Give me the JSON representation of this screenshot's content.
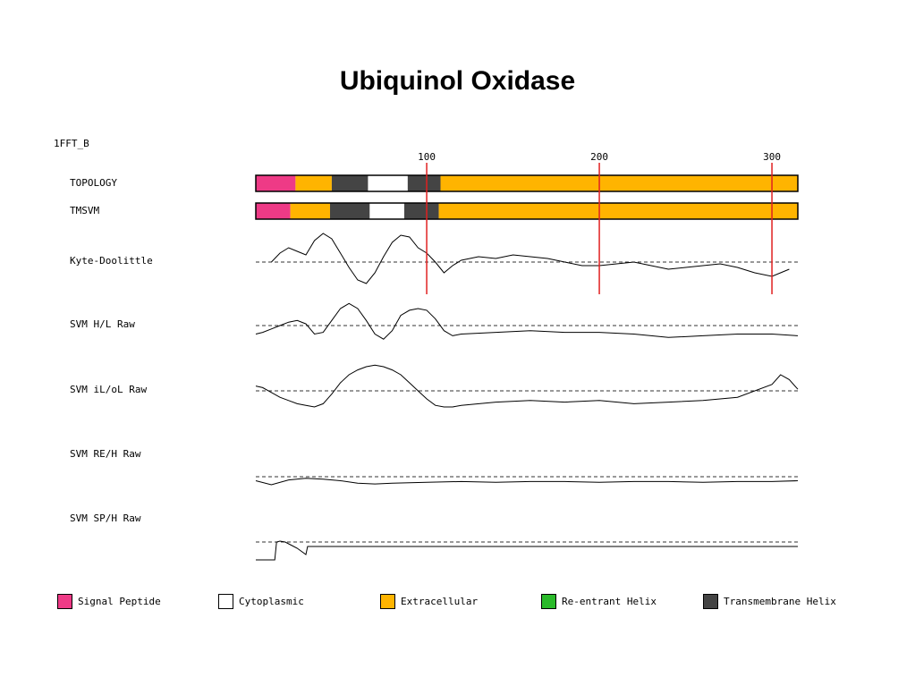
{
  "title": "Ubiquinol Oxidase",
  "sequence_id": "1FFT_B",
  "colors": {
    "signal_peptide": "#ee3a86",
    "cytoplasmic": "#ffffff",
    "extracellular": "#ffb400",
    "reentrant_helix": "#2aba2a",
    "transmembrane_helix": "#444444",
    "marker_line": "#e02020",
    "trace": "#000000"
  },
  "chart_data": {
    "type": "line",
    "title": "Ubiquinol Oxidase",
    "x_range": [
      1,
      315
    ],
    "x_ticks": [
      100,
      200,
      300
    ],
    "marker_positions": [
      100,
      200,
      300
    ],
    "topology_tracks": [
      {
        "name": "TOPOLOGY",
        "segments": [
          {
            "start": 1,
            "end": 24,
            "type": "signal_peptide"
          },
          {
            "start": 24,
            "end": 45,
            "type": "extracellular"
          },
          {
            "start": 45,
            "end": 66,
            "type": "transmembrane_helix"
          },
          {
            "start": 66,
            "end": 89,
            "type": "cytoplasmic"
          },
          {
            "start": 89,
            "end": 108,
            "type": "transmembrane_helix"
          },
          {
            "start": 108,
            "end": 315,
            "type": "extracellular"
          }
        ]
      },
      {
        "name": "TMSVM",
        "segments": [
          {
            "start": 1,
            "end": 21,
            "type": "signal_peptide"
          },
          {
            "start": 21,
            "end": 44,
            "type": "extracellular"
          },
          {
            "start": 44,
            "end": 67,
            "type": "transmembrane_helix"
          },
          {
            "start": 67,
            "end": 87,
            "type": "cytoplasmic"
          },
          {
            "start": 87,
            "end": 107,
            "type": "transmembrane_helix"
          },
          {
            "start": 107,
            "end": 315,
            "type": "extracellular"
          }
        ]
      }
    ],
    "profiles": [
      {
        "name": "Kyte-Doolittle",
        "x": [
          10,
          15,
          20,
          25,
          30,
          35,
          40,
          45,
          50,
          55,
          60,
          65,
          70,
          75,
          80,
          85,
          90,
          95,
          100,
          105,
          110,
          115,
          120,
          130,
          140,
          150,
          160,
          170,
          180,
          190,
          200,
          210,
          220,
          230,
          240,
          250,
          260,
          270,
          280,
          290,
          300,
          305,
          310
        ],
        "y": [
          0.0,
          0.5,
          0.8,
          0.6,
          0.4,
          1.2,
          1.6,
          1.3,
          0.5,
          -0.3,
          -1.0,
          -1.2,
          -0.6,
          0.3,
          1.1,
          1.5,
          1.4,
          0.8,
          0.5,
          0.0,
          -0.6,
          -0.2,
          0.1,
          0.3,
          0.2,
          0.4,
          0.3,
          0.2,
          0.0,
          -0.2,
          -0.2,
          -0.1,
          0.0,
          -0.2,
          -0.4,
          -0.3,
          -0.2,
          -0.1,
          -0.3,
          -0.6,
          -0.8,
          -0.6,
          -0.4
        ],
        "baseline": 0
      },
      {
        "name": "SVM H/L Raw",
        "x": [
          1,
          5,
          10,
          15,
          20,
          25,
          30,
          35,
          40,
          45,
          50,
          55,
          60,
          65,
          70,
          75,
          80,
          85,
          90,
          95,
          100,
          105,
          110,
          115,
          120,
          140,
          160,
          180,
          200,
          220,
          240,
          260,
          280,
          300,
          315
        ],
        "y": [
          -0.5,
          -0.4,
          -0.2,
          0.0,
          0.2,
          0.3,
          0.1,
          -0.5,
          -0.4,
          0.3,
          1.0,
          1.3,
          1.0,
          0.3,
          -0.5,
          -0.8,
          -0.3,
          0.6,
          0.9,
          1.0,
          0.9,
          0.4,
          -0.3,
          -0.6,
          -0.5,
          -0.4,
          -0.3,
          -0.4,
          -0.4,
          -0.5,
          -0.7,
          -0.6,
          -0.5,
          -0.5,
          -0.6
        ],
        "baseline": 0
      },
      {
        "name": "SVM iL/oL Raw",
        "x": [
          1,
          5,
          10,
          15,
          20,
          25,
          30,
          35,
          40,
          45,
          50,
          55,
          60,
          65,
          70,
          75,
          80,
          85,
          90,
          95,
          100,
          105,
          110,
          115,
          120,
          140,
          160,
          180,
          200,
          220,
          240,
          260,
          280,
          300,
          305,
          310,
          315
        ],
        "y": [
          0.3,
          0.2,
          -0.1,
          -0.4,
          -0.6,
          -0.8,
          -0.9,
          -1.0,
          -0.8,
          -0.2,
          0.5,
          1.0,
          1.3,
          1.5,
          1.6,
          1.5,
          1.3,
          1.0,
          0.5,
          0.0,
          -0.5,
          -0.9,
          -1.0,
          -1.0,
          -0.9,
          -0.7,
          -0.6,
          -0.7,
          -0.6,
          -0.8,
          -0.7,
          -0.6,
          -0.4,
          0.4,
          1.0,
          0.7,
          0.1
        ],
        "baseline": 0
      },
      {
        "name": "SVM RE/H Raw",
        "x": [
          1,
          10,
          20,
          30,
          40,
          50,
          60,
          70,
          80,
          100,
          120,
          140,
          160,
          180,
          200,
          220,
          240,
          260,
          280,
          300,
          315
        ],
        "y": [
          -0.5,
          -1.0,
          -0.4,
          -0.2,
          -0.3,
          -0.5,
          -0.8,
          -0.9,
          -0.8,
          -0.7,
          -0.6,
          -0.7,
          -0.6,
          -0.6,
          -0.7,
          -0.6,
          -0.6,
          -0.7,
          -0.6,
          -0.6,
          -0.5
        ],
        "baseline": 0
      },
      {
        "name": "SVM SP/H Raw",
        "x": [
          1,
          12,
          13,
          15,
          18,
          22,
          25,
          30,
          31,
          315
        ],
        "y": [
          -2.0,
          -2.0,
          0.0,
          0.1,
          0.0,
          -0.4,
          -0.7,
          -1.4,
          -0.5,
          -0.5
        ],
        "baseline": 0
      }
    ],
    "legend": [
      {
        "label": "Signal Peptide",
        "color_key": "signal_peptide"
      },
      {
        "label": "Cytoplasmic",
        "color_key": "cytoplasmic"
      },
      {
        "label": "Extracellular",
        "color_key": "extracellular"
      },
      {
        "label": "Re-entrant Helix",
        "color_key": "reentrant_helix"
      },
      {
        "label": "Transmembrane Helix",
        "color_key": "transmembrane_helix"
      }
    ]
  }
}
